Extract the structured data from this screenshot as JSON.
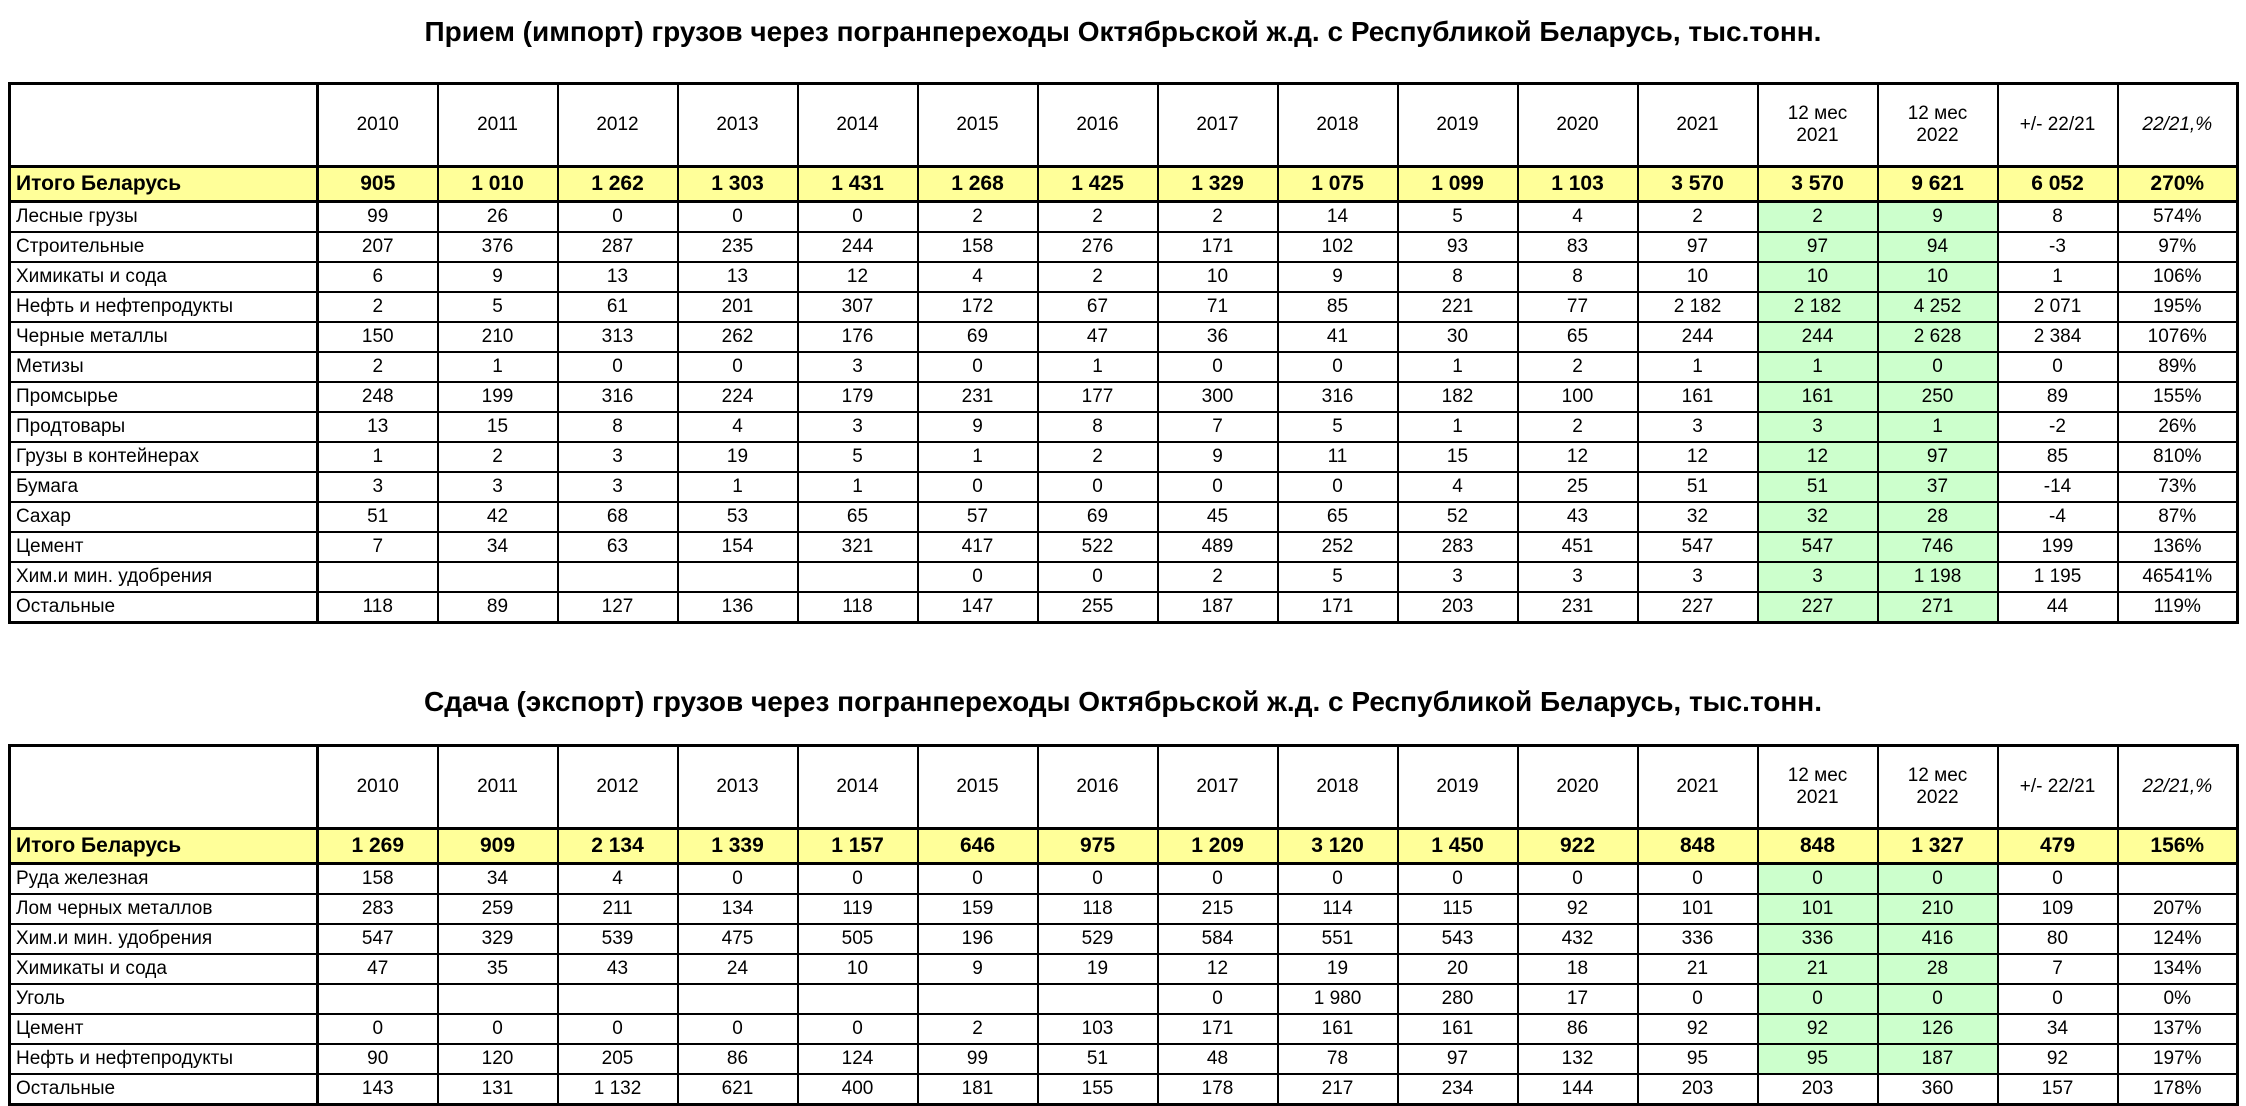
{
  "colors": {
    "total_row_bg": "#ffff99",
    "period_highlight_bg": "#ccffcc",
    "border": "#000000"
  },
  "tables": [
    {
      "title": "Прием (импорт) грузов через погранпереходы Октябрьской ж.д. с Республикой Беларусь, тыс.тонн.",
      "columns": [
        "2010",
        "2011",
        "2012",
        "2013",
        "2014",
        "2015",
        "2016",
        "2017",
        "2018",
        "2019",
        "2020",
        "2021",
        "12 мес\n2021",
        "12 мес\n2022",
        "+/- 22/21",
        "22/21,%"
      ],
      "last_column_italic": true,
      "total": {
        "label": "Итого Беларусь",
        "values": [
          "905",
          "1 010",
          "1 262",
          "1 303",
          "1 431",
          "1 268",
          "1 425",
          "1 329",
          "1 075",
          "1 099",
          "1 103",
          "3 570",
          "3 570",
          "9 621",
          "6 052",
          "270%"
        ]
      },
      "rows": [
        {
          "label": "Лесные грузы",
          "highlight_12m": true,
          "values": [
            "99",
            "26",
            "0",
            "0",
            "0",
            "2",
            "2",
            "2",
            "14",
            "5",
            "4",
            "2",
            "2",
            "9",
            "8",
            "574%"
          ]
        },
        {
          "label": "Строительные",
          "highlight_12m": true,
          "values": [
            "207",
            "376",
            "287",
            "235",
            "244",
            "158",
            "276",
            "171",
            "102",
            "93",
            "83",
            "97",
            "97",
            "94",
            "-3",
            "97%"
          ]
        },
        {
          "label": "Химикаты и сода",
          "highlight_12m": true,
          "values": [
            "6",
            "9",
            "13",
            "13",
            "12",
            "4",
            "2",
            "10",
            "9",
            "8",
            "8",
            "10",
            "10",
            "10",
            "1",
            "106%"
          ]
        },
        {
          "label": "Нефть и нефтепродукты",
          "highlight_12m": true,
          "values": [
            "2",
            "5",
            "61",
            "201",
            "307",
            "172",
            "67",
            "71",
            "85",
            "221",
            "77",
            "2 182",
            "2 182",
            "4 252",
            "2 071",
            "195%"
          ]
        },
        {
          "label": "Черные металлы",
          "highlight_12m": true,
          "values": [
            "150",
            "210",
            "313",
            "262",
            "176",
            "69",
            "47",
            "36",
            "41",
            "30",
            "65",
            "244",
            "244",
            "2 628",
            "2 384",
            "1076%"
          ]
        },
        {
          "label": "Метизы",
          "highlight_12m": true,
          "values": [
            "2",
            "1",
            "0",
            "0",
            "3",
            "0",
            "1",
            "0",
            "0",
            "1",
            "2",
            "1",
            "1",
            "0",
            "0",
            "89%"
          ]
        },
        {
          "label": "Промсырье",
          "highlight_12m": true,
          "values": [
            "248",
            "199",
            "316",
            "224",
            "179",
            "231",
            "177",
            "300",
            "316",
            "182",
            "100",
            "161",
            "161",
            "250",
            "89",
            "155%"
          ]
        },
        {
          "label": "Продтовары",
          "highlight_12m": true,
          "values": [
            "13",
            "15",
            "8",
            "4",
            "3",
            "9",
            "8",
            "7",
            "5",
            "1",
            "2",
            "3",
            "3",
            "1",
            "-2",
            "26%"
          ]
        },
        {
          "label": "Грузы в контейнерах",
          "highlight_12m": true,
          "values": [
            "1",
            "2",
            "3",
            "19",
            "5",
            "1",
            "2",
            "9",
            "11",
            "15",
            "12",
            "12",
            "12",
            "97",
            "85",
            "810%"
          ]
        },
        {
          "label": "Бумага",
          "highlight_12m": true,
          "values": [
            "3",
            "3",
            "3",
            "1",
            "1",
            "0",
            "0",
            "0",
            "0",
            "4",
            "25",
            "51",
            "51",
            "37",
            "-14",
            "73%"
          ]
        },
        {
          "label": "Сахар",
          "highlight_12m": true,
          "values": [
            "51",
            "42",
            "68",
            "53",
            "65",
            "57",
            "69",
            "45",
            "65",
            "52",
            "43",
            "32",
            "32",
            "28",
            "-4",
            "87%"
          ]
        },
        {
          "label": "Цемент",
          "highlight_12m": true,
          "values": [
            "7",
            "34",
            "63",
            "154",
            "321",
            "417",
            "522",
            "489",
            "252",
            "283",
            "451",
            "547",
            "547",
            "746",
            "199",
            "136%"
          ]
        },
        {
          "label": "Хим.и мин. удобрения",
          "highlight_12m": true,
          "values": [
            "",
            "",
            "",
            "",
            "",
            "0",
            "0",
            "2",
            "5",
            "3",
            "3",
            "3",
            "3",
            "1 198",
            "1 195",
            "46541%"
          ]
        },
        {
          "label": "Остальные",
          "highlight_12m": true,
          "values": [
            "118",
            "89",
            "127",
            "136",
            "118",
            "147",
            "255",
            "187",
            "171",
            "203",
            "231",
            "227",
            "227",
            "271",
            "44",
            "119%"
          ]
        }
      ]
    },
    {
      "title": "Сдача (экспорт) грузов через погранпереходы Октябрьской ж.д. с Республикой Беларусь, тыс.тонн.",
      "columns": [
        "2010",
        "2011",
        "2012",
        "2013",
        "2014",
        "2015",
        "2016",
        "2017",
        "2018",
        "2019",
        "2020",
        "2021",
        "12 мес\n2021",
        "12 мес\n2022",
        "+/- 22/21",
        "22/21,%"
      ],
      "last_column_italic": true,
      "total": {
        "label": "Итого Беларусь",
        "values": [
          "1 269",
          "909",
          "2 134",
          "1 339",
          "1 157",
          "646",
          "975",
          "1 209",
          "3 120",
          "1 450",
          "922",
          "848",
          "848",
          "1 327",
          "479",
          "156%"
        ]
      },
      "rows": [
        {
          "label": "Руда железная",
          "highlight_12m": true,
          "values": [
            "158",
            "34",
            "4",
            "0",
            "0",
            "0",
            "0",
            "0",
            "0",
            "0",
            "0",
            "0",
            "0",
            "0",
            "0",
            ""
          ]
        },
        {
          "label": "Лом черных металлов",
          "highlight_12m": true,
          "values": [
            "283",
            "259",
            "211",
            "134",
            "119",
            "159",
            "118",
            "215",
            "114",
            "115",
            "92",
            "101",
            "101",
            "210",
            "109",
            "207%"
          ]
        },
        {
          "label": "Хим.и мин. удобрения",
          "highlight_12m": true,
          "values": [
            "547",
            "329",
            "539",
            "475",
            "505",
            "196",
            "529",
            "584",
            "551",
            "543",
            "432",
            "336",
            "336",
            "416",
            "80",
            "124%"
          ]
        },
        {
          "label": "Химикаты и сода",
          "highlight_12m": true,
          "values": [
            "47",
            "35",
            "43",
            "24",
            "10",
            "9",
            "19",
            "12",
            "19",
            "20",
            "18",
            "21",
            "21",
            "28",
            "7",
            "134%"
          ]
        },
        {
          "label": "Уголь",
          "highlight_12m": true,
          "values": [
            "",
            "",
            "",
            "",
            "",
            "",
            "",
            "0",
            "1 980",
            "280",
            "17",
            "0",
            "0",
            "0",
            "0",
            "0%"
          ]
        },
        {
          "label": "Цемент",
          "highlight_12m": true,
          "values": [
            "0",
            "0",
            "0",
            "0",
            "0",
            "2",
            "103",
            "171",
            "161",
            "161",
            "86",
            "92",
            "92",
            "126",
            "34",
            "137%"
          ]
        },
        {
          "label": "Нефть и нефтепродукты",
          "highlight_12m": true,
          "values": [
            "90",
            "120",
            "205",
            "86",
            "124",
            "99",
            "51",
            "48",
            "78",
            "97",
            "132",
            "95",
            "95",
            "187",
            "92",
            "197%"
          ]
        },
        {
          "label": "Остальные",
          "highlight_12m": false,
          "values": [
            "143",
            "131",
            "1 132",
            "621",
            "400",
            "181",
            "155",
            "178",
            "217",
            "234",
            "144",
            "203",
            "203",
            "360",
            "157",
            "178%"
          ]
        }
      ]
    }
  ]
}
